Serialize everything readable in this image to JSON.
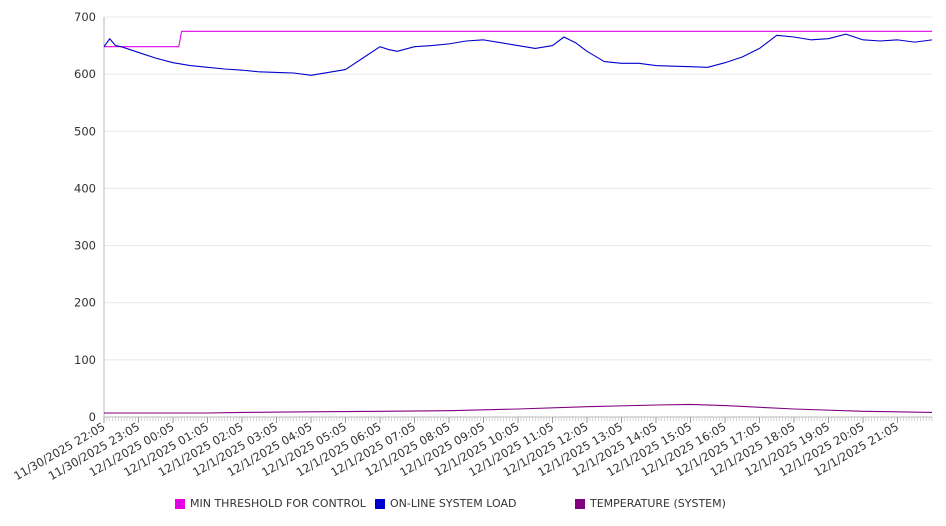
{
  "chart_data": {
    "type": "line",
    "title": "",
    "xlabel": "",
    "ylabel": "",
    "ylim": [
      0,
      700
    ],
    "yticks": [
      0,
      100,
      200,
      300,
      400,
      500,
      600,
      700
    ],
    "grid": true,
    "legend_position": "bottom",
    "x_start": "11/30/2025 22:05",
    "x_end": "12/1/2025 22:05",
    "x_tick_labels": [
      "11/30/2025 22:05",
      "11/30/2025 23:05",
      "12/1/2025 00:05",
      "12/1/2025 01:05",
      "12/1/2025 02:05",
      "12/1/2025 03:05",
      "12/1/2025 04:05",
      "12/1/2025 05:05",
      "12/1/2025 06:05",
      "12/1/2025 07:05",
      "12/1/2025 08:05",
      "12/1/2025 09:05",
      "12/1/2025 10:05",
      "12/1/2025 11:05",
      "12/1/2025 12:05",
      "12/1/2025 13:05",
      "12/1/2025 14:05",
      "12/1/2025 15:05",
      "12/1/2025 16:05",
      "12/1/2025 17:05",
      "12/1/2025 18:05",
      "12/1/2025 19:05",
      "12/1/2025 20:05",
      "12/1/2025 21:05"
    ],
    "series": [
      {
        "name": "MIN THRESHOLD FOR CONTROL",
        "color": "#e600e6",
        "points": [
          [
            "11/30/2025 22:05",
            648
          ],
          [
            "12/1/2025 00:15",
            648
          ],
          [
            "12/1/2025 00:20",
            675
          ],
          [
            "12/1/2025 22:05",
            675
          ]
        ]
      },
      {
        "name": "ON-LINE SYSTEM LOAD",
        "color": "#0000cc",
        "points": [
          [
            "11/30/2025 22:05",
            648
          ],
          [
            "11/30/2025 22:15",
            662
          ],
          [
            "11/30/2025 22:25",
            650
          ],
          [
            "11/30/2025 22:35",
            648
          ],
          [
            "11/30/2025 23:05",
            638
          ],
          [
            "11/30/2025 23:35",
            628
          ],
          [
            "12/1/2025 00:05",
            620
          ],
          [
            "12/1/2025 00:35",
            615
          ],
          [
            "12/1/2025 01:05",
            612
          ],
          [
            "12/1/2025 01:35",
            609
          ],
          [
            "12/1/2025 02:05",
            607
          ],
          [
            "12/1/2025 02:35",
            604
          ],
          [
            "12/1/2025 03:05",
            603
          ],
          [
            "12/1/2025 03:35",
            602
          ],
          [
            "12/1/2025 04:05",
            598
          ],
          [
            "12/1/2025 04:35",
            603
          ],
          [
            "12/1/2025 05:05",
            608
          ],
          [
            "12/1/2025 05:35",
            628
          ],
          [
            "12/1/2025 06:05",
            648
          ],
          [
            "12/1/2025 06:20",
            643
          ],
          [
            "12/1/2025 06:35",
            640
          ],
          [
            "12/1/2025 07:05",
            648
          ],
          [
            "12/1/2025 07:35",
            650
          ],
          [
            "12/1/2025 08:05",
            653
          ],
          [
            "12/1/2025 08:35",
            658
          ],
          [
            "12/1/2025 09:05",
            660
          ],
          [
            "12/1/2025 09:35",
            655
          ],
          [
            "12/1/2025 10:05",
            650
          ],
          [
            "12/1/2025 10:35",
            645
          ],
          [
            "12/1/2025 11:05",
            650
          ],
          [
            "12/1/2025 11:25",
            665
          ],
          [
            "12/1/2025 11:45",
            655
          ],
          [
            "12/1/2025 12:05",
            640
          ],
          [
            "12/1/2025 12:35",
            622
          ],
          [
            "12/1/2025 13:05",
            619
          ],
          [
            "12/1/2025 13:35",
            619
          ],
          [
            "12/1/2025 14:05",
            615
          ],
          [
            "12/1/2025 14:35",
            614
          ],
          [
            "12/1/2025 15:05",
            613
          ],
          [
            "12/1/2025 15:35",
            612
          ],
          [
            "12/1/2025 16:05",
            620
          ],
          [
            "12/1/2025 16:35",
            630
          ],
          [
            "12/1/2025 17:05",
            645
          ],
          [
            "12/1/2025 17:35",
            668
          ],
          [
            "12/1/2025 18:05",
            665
          ],
          [
            "12/1/2025 18:35",
            660
          ],
          [
            "12/1/2025 19:05",
            662
          ],
          [
            "12/1/2025 19:35",
            670
          ],
          [
            "12/1/2025 20:05",
            660
          ],
          [
            "12/1/2025 20:35",
            658
          ],
          [
            "12/1/2025 21:05",
            660
          ],
          [
            "12/1/2025 21:35",
            656
          ],
          [
            "12/1/2025 22:05",
            660
          ]
        ]
      },
      {
        "name": "TEMPERATURE (SYSTEM)",
        "color": "#800080",
        "points": [
          [
            "11/30/2025 22:05",
            7
          ],
          [
            "12/1/2025 01:05",
            7
          ],
          [
            "12/1/2025 02:05",
            8
          ],
          [
            "12/1/2025 04:05",
            9
          ],
          [
            "12/1/2025 06:05",
            10
          ],
          [
            "12/1/2025 08:05",
            11
          ],
          [
            "12/1/2025 10:05",
            14
          ],
          [
            "12/1/2025 12:05",
            18
          ],
          [
            "12/1/2025 14:05",
            21
          ],
          [
            "12/1/2025 15:05",
            22
          ],
          [
            "12/1/2025 16:05",
            20
          ],
          [
            "12/1/2025 18:05",
            14
          ],
          [
            "12/1/2025 20:05",
            10
          ],
          [
            "12/1/2025 22:05",
            8
          ]
        ]
      }
    ]
  }
}
